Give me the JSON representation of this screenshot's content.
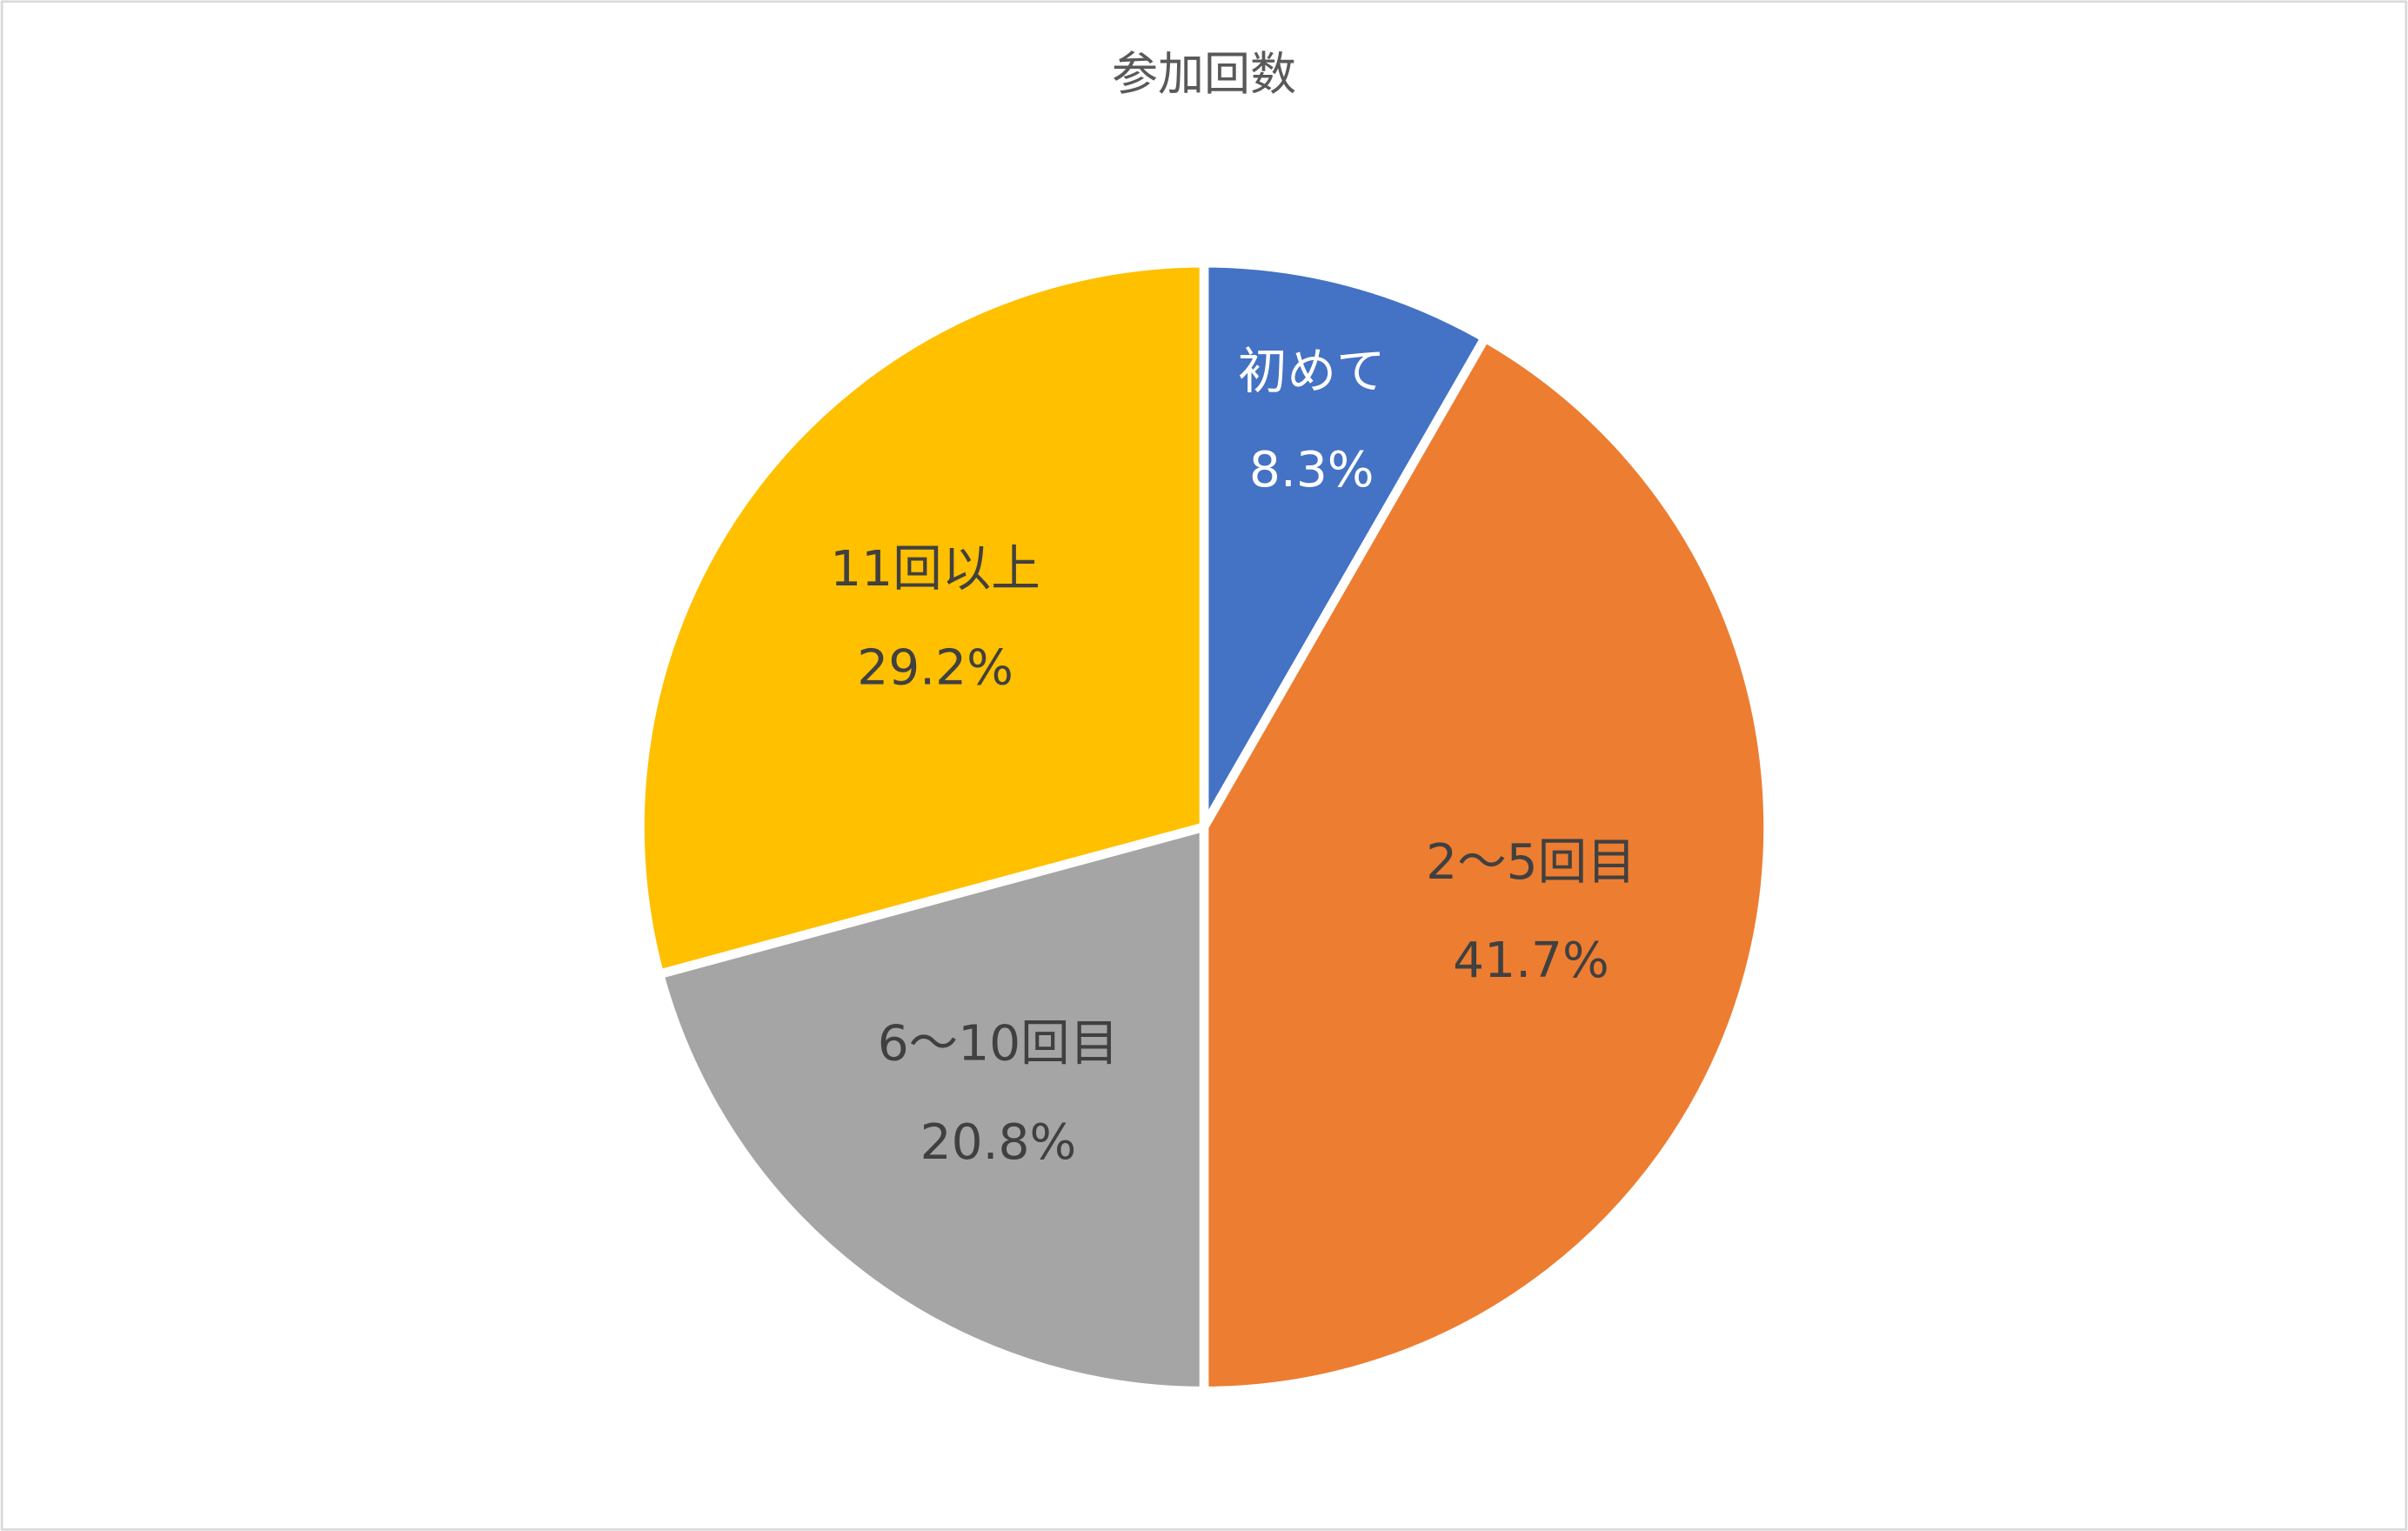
{
  "chart_data": {
    "type": "pie",
    "title": "参加回数",
    "categories": [
      "初めて",
      "2〜5回目",
      "6〜10回目",
      "11回以上"
    ],
    "values": [
      8.3,
      41.7,
      20.8,
      29.2
    ],
    "value_labels": [
      "8.3%",
      "41.7%",
      "20.8%",
      "29.2%"
    ],
    "colors": [
      "#4472c4",
      "#ed7d31",
      "#a5a5a5",
      "#ffc000"
    ],
    "label_colors": [
      "#ffffff",
      "#404040",
      "#404040",
      "#404040"
    ]
  }
}
